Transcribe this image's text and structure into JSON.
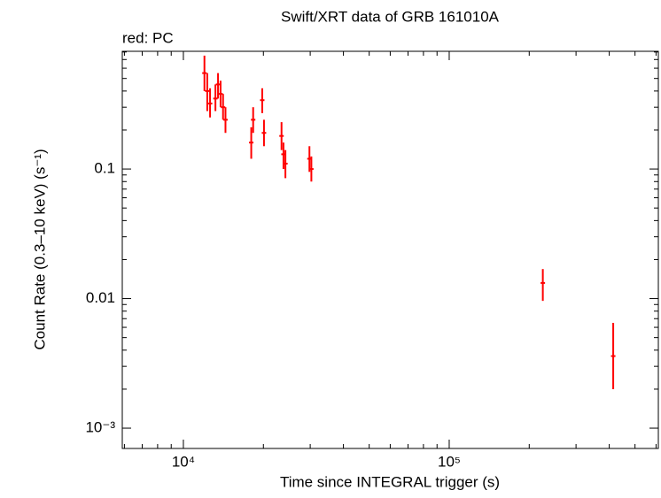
{
  "chart_data": {
    "type": "scatter",
    "title": "Swift/XRT data of GRB 161010A",
    "annotation": "red: PC",
    "x_label": "Time since INTEGRAL trigger (s)",
    "y_label": "Count Rate (0.3–10 keV) (s⁻¹)",
    "xlog": true,
    "ylog": true,
    "xlim": [
      5890,
      612000
    ],
    "ylim": [
      0.000697,
      0.81
    ],
    "xticks": [
      {
        "value": 10000,
        "label": "10⁴"
      },
      {
        "value": 100000,
        "label": "10⁵"
      }
    ],
    "yticks": [
      {
        "value": 0.001,
        "label": "10⁻³"
      },
      0.01,
      0.1
    ],
    "xminorticks": [
      6000,
      7000,
      8000,
      9000,
      20000,
      30000,
      40000,
      50000,
      60000,
      70000,
      80000,
      90000,
      200000,
      300000,
      400000,
      500000,
      600000
    ],
    "yminorticks": [
      0.002,
      0.003,
      0.004,
      0.005,
      0.006,
      0.007,
      0.008,
      0.009,
      0.02,
      0.03,
      0.04,
      0.05,
      0.06,
      0.07,
      0.08,
      0.09,
      0.2,
      0.3,
      0.4,
      0.5,
      0.6,
      0.7,
      0.8
    ],
    "series": [
      {
        "color": "#ff0000",
        "x": [
          12000,
          12300,
          12600,
          13200,
          13500,
          13800,
          14100,
          14400,
          18000,
          18300,
          19800,
          20100,
          23400,
          23800,
          24200,
          29800,
          30300,
          225000,
          414000
        ],
        "values": [
          0.55,
          0.4,
          0.32,
          0.35,
          0.45,
          0.38,
          0.3,
          0.24,
          0.16,
          0.24,
          0.34,
          0.19,
          0.18,
          0.13,
          0.11,
          0.12,
          0.1,
          0.0132,
          0.0036
        ],
        "err_low": [
          0.15,
          0.12,
          0.07,
          0.07,
          0.1,
          0.08,
          0.06,
          0.05,
          0.04,
          0.05,
          0.07,
          0.04,
          0.04,
          0.03,
          0.025,
          0.025,
          0.02,
          0.0036,
          0.0016
        ],
        "err_high": [
          0.2,
          0.15,
          0.1,
          0.1,
          0.1,
          0.1,
          0.08,
          0.06,
          0.05,
          0.06,
          0.08,
          0.05,
          0.05,
          0.03,
          0.03,
          0.03,
          0.025,
          0.0037,
          0.0029
        ]
      }
    ]
  }
}
